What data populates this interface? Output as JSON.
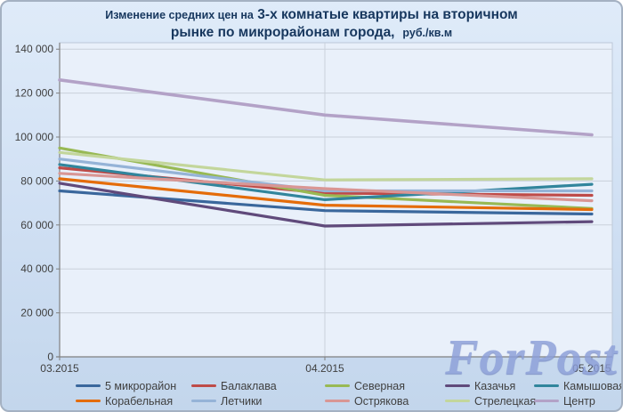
{
  "title": {
    "line1_small": "Изменение средних цен на",
    "line1_big": "3-х комнатые квартиры на вторичном",
    "line2_big": "рынке по микрорайонам города,",
    "line2_small": "руб./кв.м"
  },
  "watermark": "ForPost",
  "colors": {
    "frame_background": "#cfdff3",
    "plot_background": "#e9f0fa",
    "gridline": "#c9d0da",
    "axis": "#808080",
    "title_text": "#17375E",
    "tick_text": "#3f3f3f",
    "watermark_text": "#8C9FD9"
  },
  "chart_data": {
    "type": "line",
    "title": "Изменение средних цен на 3-х комнатые квартиры на вторичном рынке по микрорайонам города, руб./кв.м",
    "categories": [
      "03.2015",
      "04.2015",
      "05.2015"
    ],
    "series": [
      {
        "name": "5 микрорайон",
        "color": "#3A679C",
        "values": [
          75500,
          66500,
          65000
        ]
      },
      {
        "name": "Балаклава",
        "color": "#BE4B48",
        "values": [
          86000,
          74500,
          73500
        ]
      },
      {
        "name": "Северная",
        "color": "#98B954",
        "values": [
          95000,
          73500,
          67500
        ]
      },
      {
        "name": "Казачья",
        "color": "#604A7B",
        "values": [
          79000,
          59500,
          61500
        ]
      },
      {
        "name": "Камышовая",
        "color": "#31859C",
        "values": [
          87500,
          71500,
          78500
        ]
      },
      {
        "name": "Корабельная",
        "color": "#E46C0A",
        "values": [
          81000,
          69000,
          67000
        ]
      },
      {
        "name": "Летчики",
        "color": "#95B3D7",
        "values": [
          90000,
          75500,
          75500
        ]
      },
      {
        "name": "Острякова",
        "color": "#D99694",
        "values": [
          83500,
          76500,
          71000
        ]
      },
      {
        "name": "Стрелецкая",
        "color": "#C3D69B",
        "values": [
          93000,
          80500,
          81000
        ]
      },
      {
        "name": "Центр",
        "color": "#B3A2C7",
        "values": [
          126000,
          110000,
          101000
        ]
      }
    ],
    "ylim": [
      0,
      140000
    ],
    "ytick_step": 20000,
    "y_tick_labels": [
      "0",
      "20 000",
      "40 000",
      "60 000",
      "80 000",
      "100 000",
      "120 000",
      "140 000"
    ],
    "grid": true,
    "legend_position": "bottom"
  }
}
